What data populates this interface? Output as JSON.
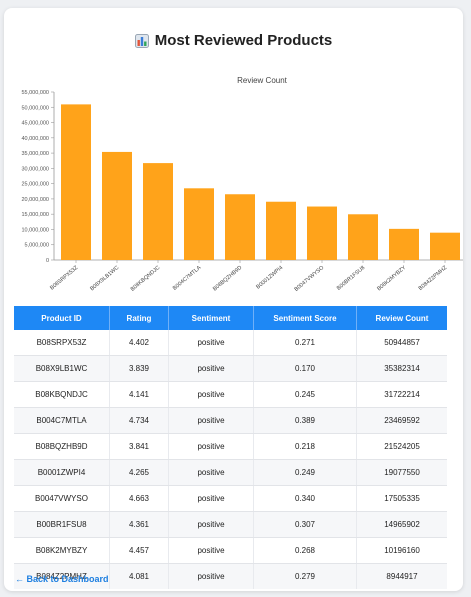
{
  "page": {
    "title": "Most Reviewed Products",
    "title_icon": "bar-chart-icon"
  },
  "chart_data": {
    "type": "bar",
    "title": "Review Count",
    "xlabel": "",
    "ylabel": "",
    "categories": [
      "B08SRPX53Z",
      "B08X9LB1WC",
      "B08KBQNDJC",
      "B004C7MTLA",
      "B08BQZHB9D",
      "B0001ZWPI4",
      "B0047VWYSO",
      "B00BR1FSU8",
      "B08K2MYBZY",
      "B084Z2PMHZ"
    ],
    "values": [
      50944857,
      35382314,
      31722214,
      23469592,
      21524205,
      19077550,
      17505335,
      14965902,
      10196160,
      8944917
    ],
    "ylim": [
      0,
      55000000
    ],
    "yticks": [
      0,
      5000000,
      10000000,
      15000000,
      20000000,
      25000000,
      30000000,
      35000000,
      40000000,
      45000000,
      50000000,
      55000000
    ],
    "ytick_labels": [
      "0",
      "5,000,000",
      "10,000,000",
      "15,000,000",
      "20,000,000",
      "25,000,000",
      "30,000,000",
      "35,000,000",
      "40,000,000",
      "45,000,000",
      "50,000,000",
      "55,000,000"
    ],
    "grid": false,
    "bar_color": "#ffa31a"
  },
  "table": {
    "headers": [
      "Product ID",
      "Rating",
      "Sentiment",
      "Sentiment Score",
      "Review Count"
    ],
    "rows": [
      [
        "B08SRPX53Z",
        "4.402",
        "positive",
        "0.271",
        "50944857"
      ],
      [
        "B08X9LB1WC",
        "3.839",
        "positive",
        "0.170",
        "35382314"
      ],
      [
        "B08KBQNDJC",
        "4.141",
        "positive",
        "0.245",
        "31722214"
      ],
      [
        "B004C7MTLA",
        "4.734",
        "positive",
        "0.389",
        "23469592"
      ],
      [
        "B08BQZHB9D",
        "3.841",
        "positive",
        "0.218",
        "21524205"
      ],
      [
        "B0001ZWPI4",
        "4.265",
        "positive",
        "0.249",
        "19077550"
      ],
      [
        "B0047VWYSO",
        "4.663",
        "positive",
        "0.340",
        "17505335"
      ],
      [
        "B00BR1FSU8",
        "4.361",
        "positive",
        "0.307",
        "14965902"
      ],
      [
        "B08K2MYBZY",
        "4.457",
        "positive",
        "0.268",
        "10196160"
      ],
      [
        "B084Z2PMHZ",
        "4.081",
        "positive",
        "0.279",
        "8944917"
      ]
    ]
  },
  "colors": {
    "header_bg": "#1e88f5",
    "link": "#1e7fe0"
  },
  "back_link": "← Back to Dashboard"
}
